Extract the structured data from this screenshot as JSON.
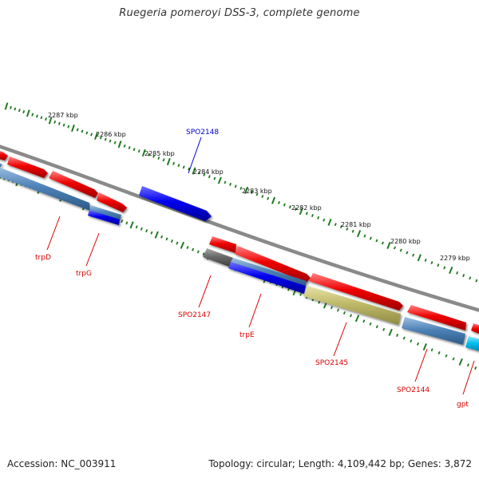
{
  "title": "Ruegeria pomeroyi DSS-3, complete genome",
  "footer": {
    "accession": "Accession: NC_003911",
    "summary": "Topology: circular; Length: 4,109,442 bp; Genes: 3,872"
  },
  "colors": {
    "forward_cds": "#ee0000",
    "steel_blue": "#4f83b8",
    "blue": "#0000ee",
    "khaki": "#bfba6a",
    "gray": "#6b6b6b",
    "cyan": "#00bfef",
    "tick_green": "#1f7a1f",
    "backbone": "#8a8a8a",
    "label_red": "#dd0000",
    "label_blue": "#0000cc"
  },
  "scale_labels": [
    "2287 kbp",
    "2286 kbp",
    "2285 kbp",
    "2284 kbp",
    "2283 kbp",
    "2282 kbp",
    "2281 kbp",
    "2280 kbp",
    "2279 kbp"
  ],
  "gene_labels": [
    {
      "id": "trpD",
      "text": "trpD",
      "color": "red"
    },
    {
      "id": "trpG",
      "text": "trpG",
      "color": "red"
    },
    {
      "id": "SPO2148",
      "text": "SPO2148",
      "color": "blue"
    },
    {
      "id": "SPO2147",
      "text": "SPO2147",
      "color": "red"
    },
    {
      "id": "trpE",
      "text": "trpE",
      "color": "red"
    },
    {
      "id": "SPO2145",
      "text": "SPO2145",
      "color": "red"
    },
    {
      "id": "SPO2144",
      "text": "SPO2144",
      "color": "red"
    },
    {
      "id": "gpt",
      "text": "gpt",
      "color": "red"
    }
  ]
}
